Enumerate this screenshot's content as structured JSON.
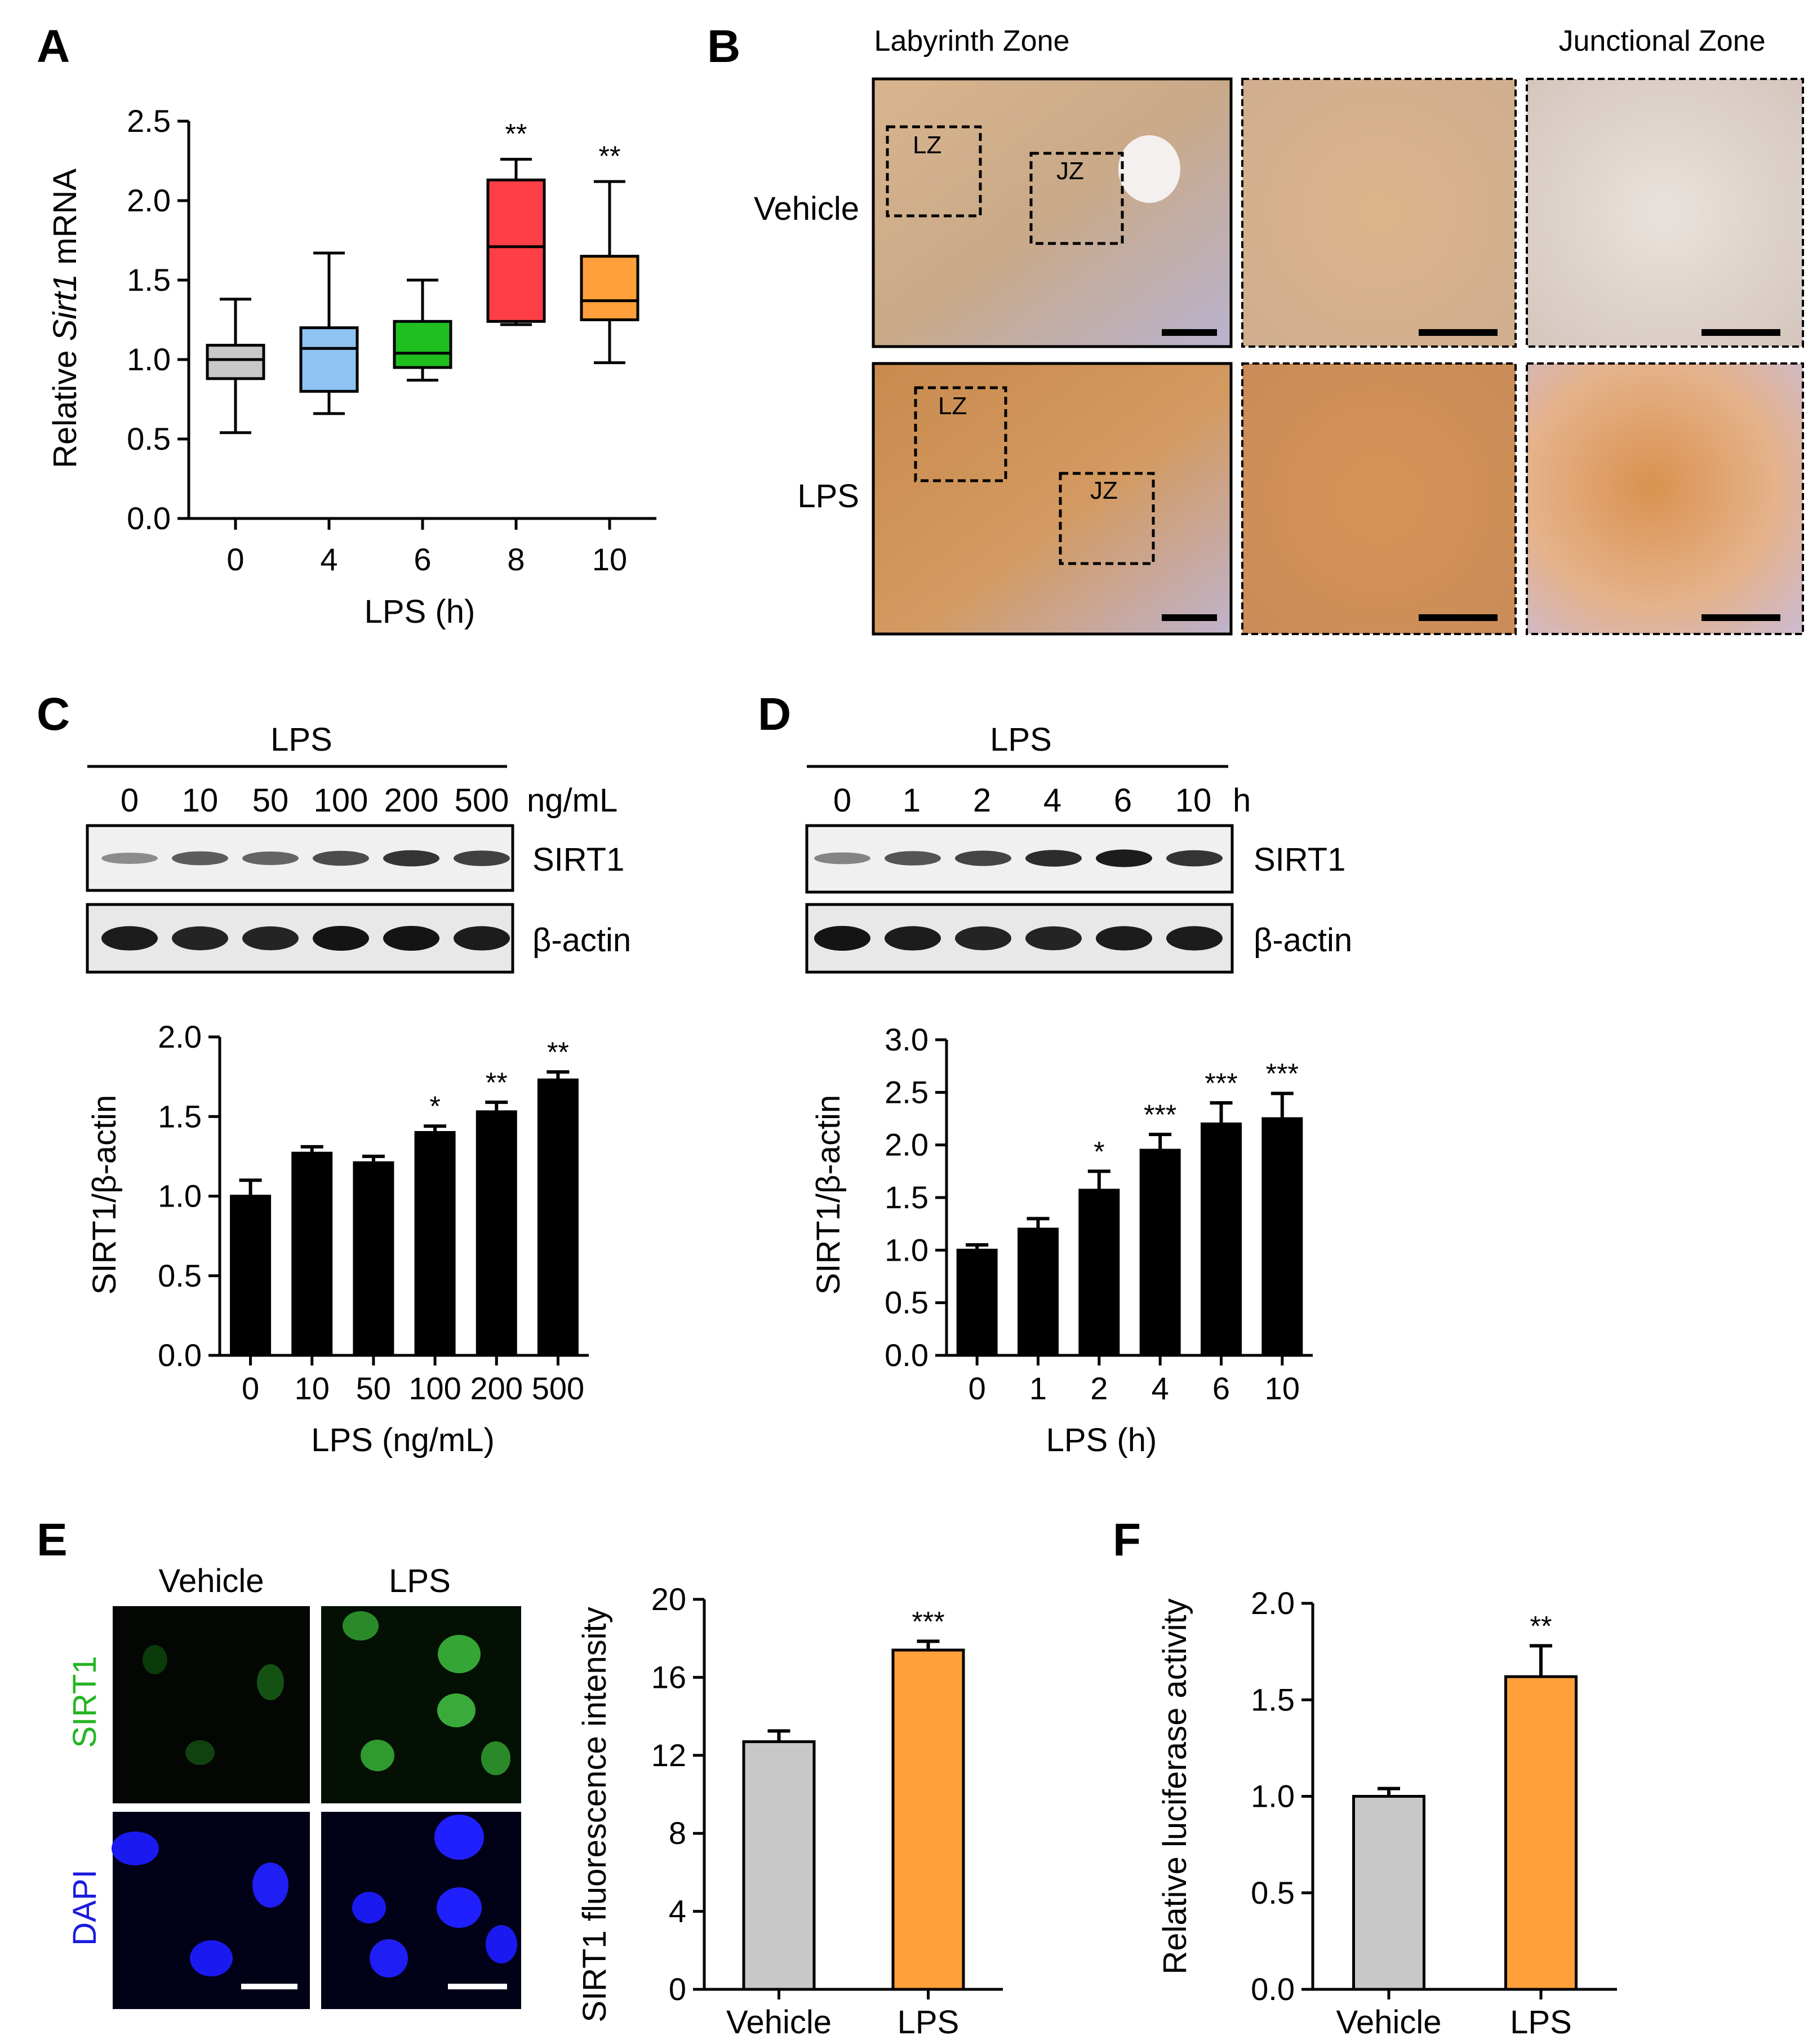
{
  "panels": {
    "A": "A",
    "B": "B",
    "C": "C",
    "D": "D",
    "E": "E",
    "F": "F"
  },
  "colors": {
    "gray": "#c8c8c8",
    "blue": "#8ec3f2",
    "green": "#1fbf1f",
    "red": "#ff3f46",
    "orange": "#ffa03a",
    "black": "#000000"
  },
  "B": {
    "col_labels": [
      "Labyrinth Zone",
      "Junctional Zone"
    ],
    "row_labels": [
      "Vehicle",
      "LPS"
    ],
    "box_labels": [
      "LZ",
      "JZ"
    ]
  },
  "C": {
    "blot_title": "LPS",
    "lane_labels": [
      "0",
      "10",
      "50",
      "100",
      "200",
      "500"
    ],
    "unit": "ng/mL",
    "bands": [
      "SIRT1",
      "β-actin"
    ]
  },
  "D": {
    "blot_title": "LPS",
    "lane_labels": [
      "0",
      "1",
      "2",
      "4",
      "6",
      "10"
    ],
    "unit": "h",
    "bands": [
      "SIRT1",
      "β-actin"
    ]
  },
  "E": {
    "col_labels": [
      "Vehicle",
      "LPS"
    ],
    "row_labels": [
      "SIRT1",
      "DAPI"
    ]
  },
  "chart_data": [
    {
      "id": "A",
      "type": "box",
      "categories": [
        "0",
        "4",
        "6",
        "8",
        "10"
      ],
      "boxes": [
        {
          "min": 0.54,
          "q1": 0.88,
          "median": 1.0,
          "q3": 1.09,
          "max": 1.38,
          "color": "gray",
          "sig": ""
        },
        {
          "min": 0.66,
          "q1": 0.8,
          "median": 1.07,
          "q3": 1.2,
          "max": 1.67,
          "color": "blue",
          "sig": ""
        },
        {
          "min": 0.87,
          "q1": 0.95,
          "median": 1.04,
          "q3": 1.24,
          "max": 1.5,
          "color": "green",
          "sig": ""
        },
        {
          "min": 1.22,
          "q1": 1.24,
          "median": 1.71,
          "q3": 2.13,
          "max": 2.26,
          "color": "red",
          "sig": "**"
        },
        {
          "min": 0.98,
          "q1": 1.25,
          "median": 1.37,
          "q3": 1.65,
          "max": 2.12,
          "color": "orange",
          "sig": "**"
        }
      ],
      "ylabel_pre": "Relative ",
      "ylabel_ital": "Sirt1",
      "ylabel_post": " mRNA",
      "xlabel": "LPS (h)",
      "ylim": [
        0,
        2.5
      ],
      "yticks": [
        "0.0",
        "0.5",
        "1.0",
        "1.5",
        "2.0",
        "2.5"
      ]
    },
    {
      "id": "C",
      "type": "bar",
      "categories": [
        "0",
        "10",
        "50",
        "100",
        "200",
        "500"
      ],
      "values": [
        1.0,
        1.27,
        1.21,
        1.4,
        1.53,
        1.73
      ],
      "errors": [
        0.1,
        0.04,
        0.04,
        0.04,
        0.06,
        0.05
      ],
      "sig": [
        "",
        "",
        "",
        "*",
        "**",
        "**"
      ],
      "ylabel": "SIRT1/β-actin",
      "xlabel": "LPS (ng/mL)",
      "ylim": [
        0,
        2.0
      ],
      "yticks": [
        "0.0",
        "0.5",
        "1.0",
        "1.5",
        "2.0"
      ],
      "color": "black"
    },
    {
      "id": "D",
      "type": "bar",
      "categories": [
        "0",
        "1",
        "2",
        "4",
        "6",
        "10"
      ],
      "values": [
        1.0,
        1.2,
        1.57,
        1.95,
        2.2,
        2.25
      ],
      "errors": [
        0.05,
        0.1,
        0.18,
        0.15,
        0.2,
        0.24
      ],
      "sig": [
        "",
        "",
        "*",
        "***",
        "***",
        "***"
      ],
      "ylabel": "SIRT1/β-actin",
      "xlabel": "LPS (h)",
      "ylim": [
        0,
        3.0
      ],
      "yticks": [
        "0.0",
        "0.5",
        "1.0",
        "1.5",
        "2.0",
        "2.5",
        "3.0"
      ],
      "color": "black"
    },
    {
      "id": "E",
      "type": "bar",
      "categories": [
        "Vehicle",
        "LPS"
      ],
      "values": [
        12.7,
        17.4
      ],
      "errors": [
        0.55,
        0.45
      ],
      "sig": [
        "",
        "***"
      ],
      "colors": [
        "gray",
        "orange"
      ],
      "ylabel": "SIRT1 fluorescence intensity",
      "xlabel": "",
      "ylim": [
        0,
        20
      ],
      "yticks": [
        "0",
        "4",
        "8",
        "12",
        "16",
        "20"
      ]
    },
    {
      "id": "F",
      "type": "bar",
      "categories": [
        "Vehicle",
        "LPS"
      ],
      "values": [
        1.0,
        1.62
      ],
      "errors": [
        0.04,
        0.16
      ],
      "sig": [
        "",
        "**"
      ],
      "colors": [
        "gray",
        "orange"
      ],
      "ylabel": "Relative luciferase activity",
      "xlabel": "",
      "ylim": [
        0,
        2.0
      ],
      "yticks": [
        "0.0",
        "0.5",
        "1.0",
        "1.5",
        "2.0"
      ]
    }
  ]
}
